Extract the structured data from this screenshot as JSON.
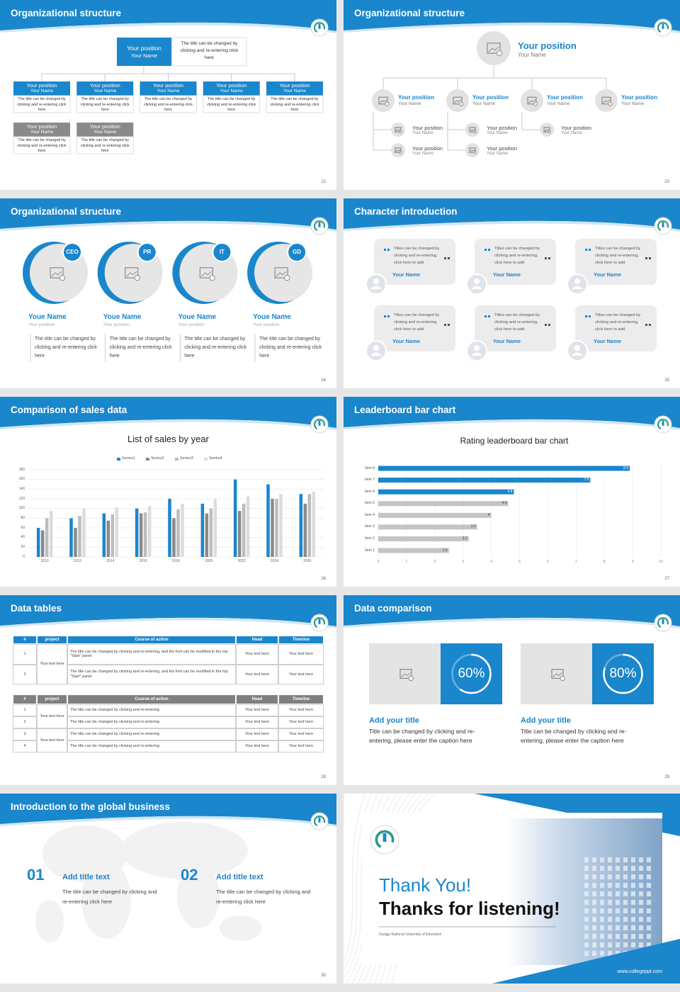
{
  "slides": [
    {
      "title": "Organizational structure",
      "page": "22",
      "top": {
        "position": "Your position",
        "name": "Your Name",
        "note": "The title can be changed by clicking and re-entering click here"
      },
      "members": [
        {
          "position": "Your position",
          "name": "Your Name",
          "note": "The title can be changed by clicking and re-entering click here"
        },
        {
          "position": "Your position",
          "name": "Your Name",
          "note": "The title can be changed by clicking and re-entering click here"
        },
        {
          "position": "Your position",
          "name": "Your Name",
          "note": "The title can be changed by clicking and re-entering click here"
        },
        {
          "position": "Your position",
          "name": "Your Name",
          "note": "The title can be changed by clicking and re-entering click here"
        },
        {
          "position": "Your position",
          "name": "Your Name",
          "note": "The title can be changed by clicking and re-entering click here"
        }
      ],
      "members2": [
        {
          "position": "Your position",
          "name": "Your Name",
          "note": "The title can be changed by clicking and re-entering click here"
        },
        {
          "position": "Your position",
          "name": "Your Name",
          "note": "The title can be changed by clicking and re-entering click here"
        }
      ]
    },
    {
      "title": "Organizational structure",
      "page": "23",
      "top": {
        "position": "Your position",
        "name": "Your Name"
      },
      "branches": [
        {
          "position": "Your position",
          "name": "Your Name",
          "children": [
            {
              "position": "Your position",
              "name": "Your Name"
            },
            {
              "position": "Your position",
              "name": "Your Name"
            }
          ]
        },
        {
          "position": "Your position",
          "name": "Your Name",
          "children": [
            {
              "position": "Your position",
              "name": "Your Name"
            },
            {
              "position": "Your position",
              "name": "Your Name"
            }
          ]
        },
        {
          "position": "Your position",
          "name": "Your Name",
          "children": [
            {
              "position": "Your position",
              "name": "Your Name"
            }
          ]
        },
        {
          "position": "Your position",
          "name": "Your Name",
          "children": []
        }
      ]
    },
    {
      "title": "Organizational structure",
      "page": "24",
      "people": [
        {
          "badge": "CEO",
          "name": "Youe Name",
          "position": "Your position",
          "note": "The title can be changed by clicking and re-entering click here"
        },
        {
          "badge": "PR",
          "name": "Youe Name",
          "position": "Your position",
          "note": "The title can be changed by clicking and re-entering click here"
        },
        {
          "badge": "IT",
          "name": "Youe Name",
          "position": "Your position",
          "note": "The title can be changed by clicking and re-entering click here"
        },
        {
          "badge": "GD",
          "name": "Youe Name",
          "position": "Your position",
          "note": "The title can be changed by clicking and re-entering click here"
        }
      ]
    },
    {
      "title": "Character introduction",
      "page": "25",
      "cards": [
        {
          "quote": "Titles can be changed by clicking and re-entering, click here to add",
          "name": "Your Name"
        },
        {
          "quote": "Titles can be changed by clicking and re-entering, click here to add",
          "name": "Your Name"
        },
        {
          "quote": "Titles can be changed by clicking and re-entering, click here to add",
          "name": "Your Name"
        },
        {
          "quote": "Titles can be changed by clicking and re-entering, click here to add",
          "name": "Your Name"
        },
        {
          "quote": "Titles can be changed by clicking and re-entering, click here to add",
          "name": "Your Name"
        },
        {
          "quote": "Titles can be changed by clicking and re-entering, click here to add",
          "name": "Your Name"
        }
      ]
    },
    {
      "title": "Comparison of sales data",
      "page": "26",
      "chart": {
        "type": "bar",
        "title": "List of sales by year",
        "categories": [
          "2010",
          "2012",
          "2014",
          "2016",
          "2018",
          "2020",
          "2022",
          "2024",
          "2026"
        ],
        "series": [
          {
            "name": "Series1",
            "color": "#1a86cc",
            "values": [
              60,
              80,
              90,
              100,
              120,
              110,
              160,
              150,
              130
            ]
          },
          {
            "name": "Series2",
            "color": "#8a8a8a",
            "values": [
              55,
              60,
              75,
              90,
              80,
              90,
              95,
              120,
              110
            ]
          },
          {
            "name": "Series3",
            "color": "#bdbdbd",
            "values": [
              80,
              85,
              88,
              92,
              98,
              100,
              110,
              120,
              130
            ]
          },
          {
            "name": "Series4",
            "color": "#dcdcdc",
            "values": [
              95,
              100,
              102,
              105,
              110,
              120,
              125,
              130,
              135
            ]
          }
        ],
        "ylim": [
          0,
          180
        ],
        "yticks": [
          0,
          20,
          40,
          60,
          80,
          100,
          120,
          140,
          160,
          180
        ],
        "grid": true
      }
    },
    {
      "title": "Leaderboard bar chart",
      "page": "27",
      "chart": {
        "type": "barh",
        "title": "Rating leaderboard bar chart",
        "categories": [
          "Item 1",
          "Item 2",
          "Item 3",
          "Item 4",
          "Item 5",
          "Item 6",
          "Item 7",
          "Item 8"
        ],
        "values": [
          2.5,
          3.2,
          3.5,
          4,
          4.6,
          4.8,
          7.5,
          8.9
        ],
        "colors": [
          "#c4c4c4",
          "#c4c4c4",
          "#c4c4c4",
          "#c4c4c4",
          "#c4c4c4",
          "#1a86cc",
          "#1a86cc",
          "#1a86cc"
        ],
        "xlim": [
          0,
          10
        ],
        "xticks": [
          0,
          1,
          2,
          3,
          4,
          5,
          6,
          7,
          8,
          9,
          10
        ],
        "grid": true
      }
    },
    {
      "title": "Data tables",
      "page": "28",
      "tables": [
        {
          "header": [
            "#",
            "project",
            "Course of action",
            "Head",
            "Timeline"
          ],
          "groups": [
            {
              "project": "Your text here",
              "rows": [
                {
                  "num": "1",
                  "course": "The title can be changed by clicking and re-entering, and the font can be modified in the top \"Start\" panel",
                  "head": "Your text here",
                  "timeline": "Your text here"
                },
                {
                  "num": "2",
                  "course": "The title can be changed by clicking and re-entering, and the font can be modified in the top \"Start\" panel",
                  "head": "Your text here",
                  "timeline": "Your text here"
                }
              ]
            }
          ]
        },
        {
          "header": [
            "#",
            "project",
            "Course of action",
            "Head",
            "Timeline"
          ],
          "groups": [
            {
              "project": "Your text here",
              "rows": [
                {
                  "num": "1",
                  "course": "The title can be changed by clicking and re-entering",
                  "head": "Your text here",
                  "timeline": "Your text here"
                },
                {
                  "num": "2",
                  "course": "The title can be changed by clicking and re-entering",
                  "head": "Your text here",
                  "timeline": "Your text here"
                }
              ]
            },
            {
              "project": "Your text here",
              "rows": [
                {
                  "num": "3",
                  "course": "The title can be changed by clicking and re-entering",
                  "head": "Your text here",
                  "timeline": "Your text here"
                },
                {
                  "num": "4",
                  "course": "The title can be changed by clicking and re-entering",
                  "head": "Your text here",
                  "timeline": "Your text here"
                }
              ]
            }
          ]
        }
      ]
    },
    {
      "title": "Data comparison",
      "page": "29",
      "panels": [
        {
          "percent": {
            "value": 60,
            "label": "60%"
          },
          "title": "Add your title",
          "text": "Title can be changed by clicking and re-entering, please enter the caption here"
        },
        {
          "percent": {
            "value": 80,
            "label": "80%"
          },
          "title": "Add your title",
          "text": "Title can be changed by clicking and re-entering, please enter the caption here"
        }
      ]
    },
    {
      "title": "Introduction to the global business",
      "page": "30",
      "items": [
        {
          "num": "01",
          "title": "Add title text",
          "text": "The title can be changed by clicking and re-entering click here"
        },
        {
          "num": "02",
          "title": "Add title text",
          "text": "The title can be changed by clicking and re-entering click here"
        }
      ]
    },
    {
      "thanks": "Thank You!",
      "subtitle": "Thanks for listening!",
      "school": "Gangju National University of Education",
      "url": "www.collegeppt.com"
    }
  ]
}
